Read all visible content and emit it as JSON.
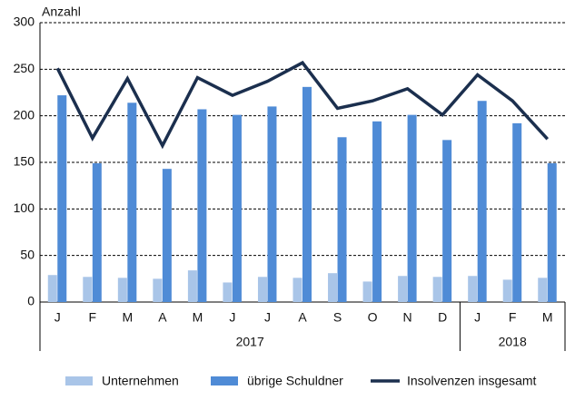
{
  "chart_data": {
    "type": "bar_line",
    "y_label": "Anzahl",
    "categories": [
      "J",
      "F",
      "M",
      "A",
      "M",
      "J",
      "J",
      "A",
      "S",
      "O",
      "N",
      "D",
      "J",
      "F",
      "M"
    ],
    "groups": [
      {
        "label": "2017",
        "span": 12
      },
      {
        "label": "2018",
        "span": 3
      }
    ],
    "series": [
      {
        "name": "Unternehmen",
        "type": "bar",
        "color": "#a9c5e8",
        "values": [
          29,
          27,
          26,
          25,
          34,
          21,
          27,
          26,
          31,
          22,
          28,
          27,
          28,
          24,
          26
        ]
      },
      {
        "name": "übrige Schuldner",
        "type": "bar",
        "color": "#4f8bd6",
        "values": [
          222,
          149,
          214,
          143,
          207,
          201,
          210,
          231,
          177,
          194,
          201,
          174,
          216,
          192,
          149
        ]
      },
      {
        "name": "Insolvenzen insgesamt",
        "type": "line",
        "color": "#1b2f4e",
        "values": [
          251,
          176,
          240,
          168,
          241,
          222,
          237,
          257,
          208,
          216,
          229,
          201,
          244,
          216,
          175
        ]
      }
    ],
    "ylim": [
      0,
      300
    ],
    "yticks": [
      0,
      50,
      100,
      150,
      200,
      250,
      300
    ],
    "grid": true
  }
}
